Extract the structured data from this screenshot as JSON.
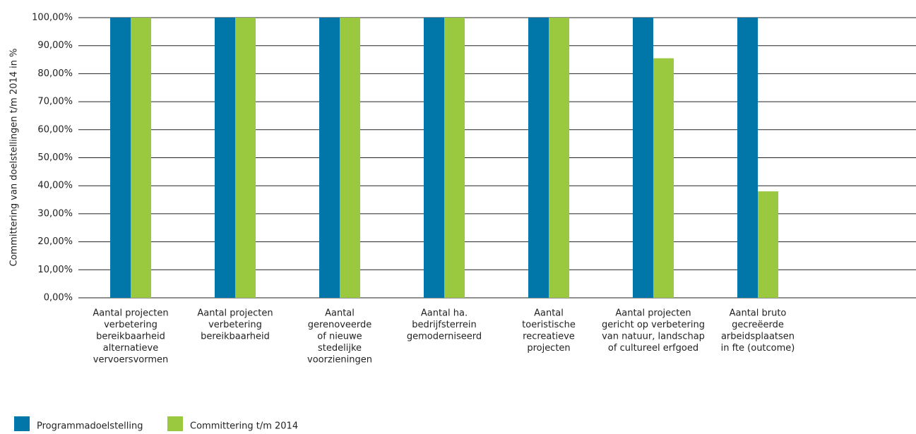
{
  "chart_data": {
    "type": "bar",
    "y_label": "Committering van doelstellingen t/m 2014 in %",
    "categories": [
      [
        "Aantal projecten",
        "verbetering",
        "bereikbaarheid",
        "alternatieve",
        "vervoersvormen"
      ],
      [
        "Aantal projecten",
        "verbetering",
        "bereikbaarheid"
      ],
      [
        "Aantal",
        "gerenoveerde",
        "of nieuwe",
        "stedelijke",
        "voorzieningen"
      ],
      [
        "Aantal ha.",
        "bedrijfsterrein",
        "gemoderniseerd"
      ],
      [
        "Aantal",
        "toeristische",
        "recreatieve",
        "projecten"
      ],
      [
        "Aantal projecten",
        "gericht op verbetering",
        "van natuur, landschap",
        "of cultureel erfgoed"
      ],
      [
        "Aantal bruto",
        "gecreëerde",
        "arbeidsplaatsen",
        "in fte (outcome)"
      ]
    ],
    "series": [
      {
        "name": "Programmadoelstelling",
        "color": "#0077a8",
        "values": [
          100,
          100,
          100,
          100,
          100,
          100,
          100
        ]
      },
      {
        "name": "Committering t/m 2014",
        "color": "#9ac940",
        "values": [
          100,
          100,
          100,
          100,
          100,
          85.5,
          38
        ]
      }
    ],
    "ylim": [
      0,
      100
    ],
    "yticks": [
      {
        "value": 0,
        "label": "0,00%"
      },
      {
        "value": 10,
        "label": "10,00%"
      },
      {
        "value": 20,
        "label": "20,00%"
      },
      {
        "value": 30,
        "label": "30,00%"
      },
      {
        "value": 40,
        "label": "40,00%"
      },
      {
        "value": 50,
        "label": "50,00%"
      },
      {
        "value": 60,
        "label": "60,00%"
      },
      {
        "value": 70,
        "label": "70,00%"
      },
      {
        "value": 80,
        "label": "80,00%"
      },
      {
        "value": 90,
        "label": "90,00%"
      },
      {
        "value": 100,
        "label": "100,00%"
      }
    ],
    "grid": true
  }
}
